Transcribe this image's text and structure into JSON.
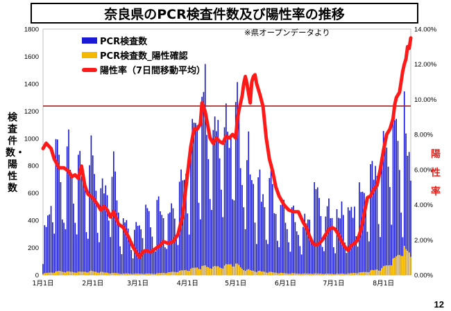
{
  "page": {
    "title": "奈良県のPCR検査件数及び陽性率の推移",
    "note": "※県オープンデータより",
    "page_number": "12"
  },
  "chart_data": {
    "type": "bar",
    "title": "奈良県のPCR検査件数及び陽性率の推移",
    "ylabel": "検査件数・陽性数",
    "y2label": "陽性率",
    "ylim": [
      0,
      1800
    ],
    "y2lim": [
      0,
      14
    ],
    "yticks": [
      "0",
      "200",
      "400",
      "600",
      "800",
      "1000",
      "1200",
      "1400",
      "1600",
      "1800"
    ],
    "y2ticks": [
      "0.00%",
      "2.00%",
      "4.00%",
      "6.00%",
      "8.00%",
      "10.00%",
      "12.00%",
      "14.00%"
    ],
    "xticks": [
      "1月1日",
      "2月1日",
      "3月1日",
      "4月1日",
      "5月1日",
      "6月1日",
      "7月1日",
      "8月1日"
    ],
    "reference_line": 1237,
    "colors": {
      "tests": "#1a1ad6",
      "positives": "#f5b800",
      "rate": "#ff1a1a",
      "reference": "#a81b1b"
    },
    "series": [
      {
        "name": "PCR検査数",
        "type": "bar",
        "points": [
          [
            0,
            280
          ],
          [
            4,
            560
          ],
          [
            8,
            1140
          ],
          [
            12,
            620
          ],
          [
            15,
            1040
          ],
          [
            19,
            760
          ],
          [
            23,
            960
          ],
          [
            27,
            850
          ],
          [
            32,
            960
          ],
          [
            36,
            600
          ],
          [
            40,
            780
          ],
          [
            44,
            880
          ],
          [
            48,
            540
          ],
          [
            52,
            420
          ],
          [
            56,
            360
          ],
          [
            60,
            490
          ],
          [
            64,
            640
          ],
          [
            68,
            400
          ],
          [
            72,
            660
          ],
          [
            76,
            520
          ],
          [
            80,
            560
          ],
          [
            84,
            740
          ],
          [
            88,
            860
          ],
          [
            92,
            1020
          ],
          [
            96,
            1330
          ],
          [
            99,
            1420
          ],
          [
            101,
            1560
          ],
          [
            103,
            1300
          ],
          [
            105,
            1250
          ],
          [
            108,
            1130
          ],
          [
            112,
            1450
          ],
          [
            116,
            1140
          ],
          [
            120,
            1480
          ],
          [
            123,
            1080
          ],
          [
            126,
            1050
          ],
          [
            130,
            860
          ],
          [
            134,
            760
          ],
          [
            138,
            620
          ],
          [
            142,
            740
          ],
          [
            146,
            520
          ],
          [
            150,
            560
          ],
          [
            154,
            500
          ],
          [
            158,
            420
          ],
          [
            162,
            440
          ],
          [
            166,
            520
          ],
          [
            170,
            760
          ],
          [
            174,
            470
          ],
          [
            178,
            560
          ],
          [
            182,
            440
          ],
          [
            186,
            580
          ],
          [
            190,
            520
          ],
          [
            194,
            600
          ],
          [
            198,
            700
          ],
          [
            202,
            720
          ],
          [
            206,
            860
          ],
          [
            210,
            880
          ],
          [
            214,
            1100
          ],
          [
            216,
            1280
          ],
          [
            218,
            1180
          ],
          [
            220,
            1260
          ],
          [
            222,
            1130
          ],
          [
            224,
            820
          ],
          [
            225,
            1460
          ],
          [
            227,
            1000
          ],
          [
            229,
            980
          ]
        ]
      },
      {
        "name": "PCR検査数_陽性確認",
        "type": "bar",
        "points": [
          [
            0,
            10
          ],
          [
            10,
            25
          ],
          [
            20,
            20
          ],
          [
            30,
            25
          ],
          [
            40,
            15
          ],
          [
            50,
            10
          ],
          [
            60,
            10
          ],
          [
            70,
            10
          ],
          [
            80,
            20
          ],
          [
            90,
            35
          ],
          [
            100,
            60
          ],
          [
            105,
            55
          ],
          [
            110,
            55
          ],
          [
            115,
            70
          ],
          [
            120,
            75
          ],
          [
            125,
            40
          ],
          [
            130,
            30
          ],
          [
            140,
            20
          ],
          [
            150,
            12
          ],
          [
            160,
            10
          ],
          [
            170,
            10
          ],
          [
            180,
            8
          ],
          [
            190,
            10
          ],
          [
            200,
            20
          ],
          [
            210,
            40
          ],
          [
            215,
            70
          ],
          [
            220,
            120
          ],
          [
            225,
            185
          ],
          [
            229,
            130
          ]
        ]
      },
      {
        "name": "陽性率（7日間移動平均）",
        "type": "line",
        "points": [
          [
            0,
            7.2
          ],
          [
            2,
            7.5
          ],
          [
            5,
            7.2
          ],
          [
            7,
            6.6
          ],
          [
            10,
            6.1
          ],
          [
            13,
            6.1
          ],
          [
            16,
            5.9
          ],
          [
            18,
            5.6
          ],
          [
            20,
            5.7
          ],
          [
            22,
            5.5
          ],
          [
            24,
            6.2
          ],
          [
            26,
            5.1
          ],
          [
            28,
            4.6
          ],
          [
            31,
            4.4
          ],
          [
            34,
            4.0
          ],
          [
            36,
            3.7
          ],
          [
            38,
            3.9
          ],
          [
            40,
            3.7
          ],
          [
            42,
            3.3
          ],
          [
            44,
            3.6
          ],
          [
            47,
            2.9
          ],
          [
            50,
            2.7
          ],
          [
            53,
            2.2
          ],
          [
            56,
            1.6
          ],
          [
            58,
            1.3
          ],
          [
            60,
            1.0
          ],
          [
            62,
            1.3
          ],
          [
            64,
            1.4
          ],
          [
            67,
            1.3
          ],
          [
            70,
            1.5
          ],
          [
            73,
            1.7
          ],
          [
            75,
            1.9
          ],
          [
            78,
            1.8
          ],
          [
            81,
            1.9
          ],
          [
            84,
            2.3
          ],
          [
            87,
            3.4
          ],
          [
            89,
            5.0
          ],
          [
            92,
            7.3
          ],
          [
            94,
            8.3
          ],
          [
            96,
            8.3
          ],
          [
            98,
            8.6
          ],
          [
            99,
            9.8
          ],
          [
            101,
            9.3
          ],
          [
            103,
            8.3
          ],
          [
            104,
            7.8
          ],
          [
            106,
            7.5
          ],
          [
            108,
            7.8
          ],
          [
            110,
            7.6
          ],
          [
            112,
            7.5
          ],
          [
            114,
            7.9
          ],
          [
            116,
            7.8
          ],
          [
            118,
            8.0
          ],
          [
            120,
            7.8
          ],
          [
            121,
            8.8
          ],
          [
            122,
            9.4
          ],
          [
            123,
            9.8
          ],
          [
            124,
            10.2
          ],
          [
            125,
            10.9
          ],
          [
            126,
            11.3
          ],
          [
            127,
            10.9
          ],
          [
            129,
            9.8
          ],
          [
            130,
            11.0
          ],
          [
            131,
            11.3
          ],
          [
            132,
            11.4
          ],
          [
            133,
            10.9
          ],
          [
            135,
            10.3
          ],
          [
            137,
            9.6
          ],
          [
            139,
            7.8
          ],
          [
            141,
            6.6
          ],
          [
            143,
            5.9
          ],
          [
            145,
            5.0
          ],
          [
            147,
            4.5
          ],
          [
            150,
            4.0
          ],
          [
            153,
            3.7
          ],
          [
            156,
            3.6
          ],
          [
            159,
            3.6
          ],
          [
            162,
            3.0
          ],
          [
            164,
            2.7
          ],
          [
            166,
            2.2
          ],
          [
            168,
            1.8
          ],
          [
            170,
            1.7
          ],
          [
            172,
            1.8
          ],
          [
            174,
            2.0
          ],
          [
            176,
            2.3
          ],
          [
            178,
            2.6
          ],
          [
            180,
            2.7
          ],
          [
            182,
            2.6
          ],
          [
            184,
            2.3
          ],
          [
            186,
            1.9
          ],
          [
            188,
            1.6
          ],
          [
            190,
            1.4
          ],
          [
            192,
            1.7
          ],
          [
            194,
            1.8
          ],
          [
            196,
            2.0
          ],
          [
            198,
            2.6
          ],
          [
            200,
            3.5
          ],
          [
            202,
            4.4
          ],
          [
            204,
            4.5
          ],
          [
            206,
            4.9
          ],
          [
            208,
            5.1
          ],
          [
            210,
            6.0
          ],
          [
            212,
            7.1
          ],
          [
            214,
            8.0
          ],
          [
            216,
            8.3
          ],
          [
            218,
            8.9
          ],
          [
            219,
            9.7
          ],
          [
            220,
            10.1
          ],
          [
            222,
            10.4
          ],
          [
            224,
            11.6
          ],
          [
            225,
            12.0
          ],
          [
            226,
            12.3
          ],
          [
            227,
            13.0
          ],
          [
            228,
            12.9
          ],
          [
            229,
            13.5
          ]
        ]
      }
    ]
  }
}
